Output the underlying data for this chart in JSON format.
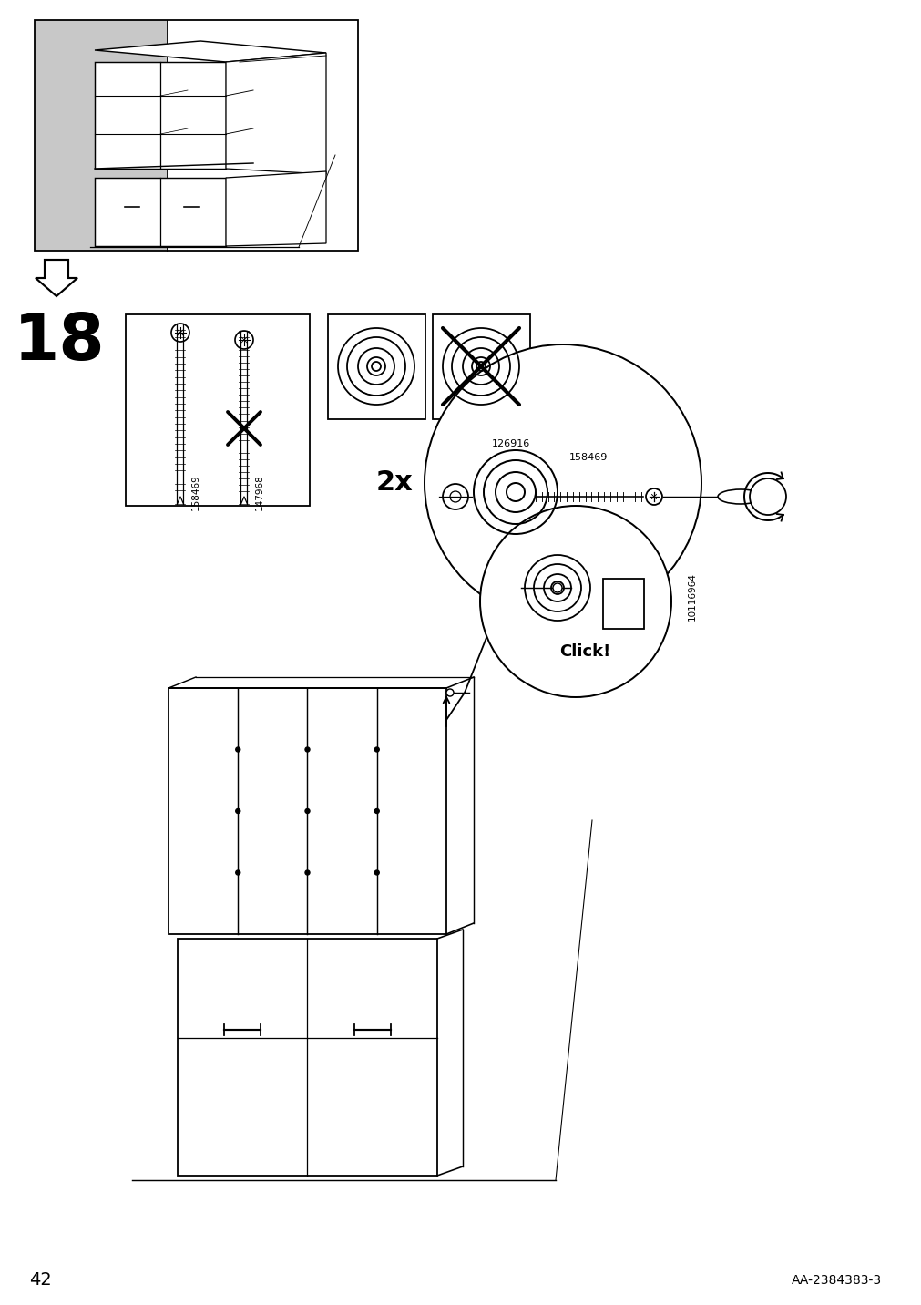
{
  "page_number": "42",
  "footer_text": "AA-2384383-3",
  "step_number": "18",
  "bg_color": "#ffffff",
  "black": "#000000",
  "gray_bg": "#c8c8c8",
  "part_158469": "158469",
  "part_147968": "147968",
  "part_126916": "126916",
  "part_10116964": "10116964",
  "qty_label": "2x",
  "click_label": "Click!",
  "lw": 1.3
}
